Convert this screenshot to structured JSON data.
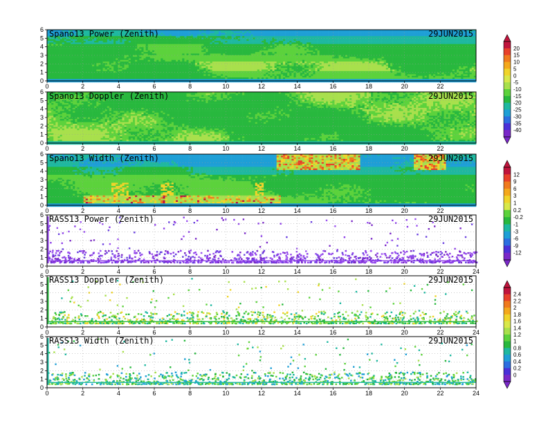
{
  "chart_data": [
    {
      "type": "heatmap",
      "title": "Spano13 Power (Zenith)",
      "date": "29JUN2015",
      "quantity": "power",
      "xlim": [
        0,
        24
      ],
      "ylim": [
        0,
        6
      ],
      "xticks": [
        "0",
        "2",
        "4",
        "6",
        "8",
        "10",
        "12",
        "14",
        "16",
        "18",
        "20",
        "22"
      ],
      "yticks": [
        "0",
        "1",
        "2",
        "3",
        "4",
        "5",
        "6"
      ],
      "grid": true,
      "colorbar": "power"
    },
    {
      "type": "heatmap",
      "title": "Spano13 Doppler (Zenith)",
      "date": "29JUN2015",
      "quantity": "doppler",
      "xlim": [
        0,
        24
      ],
      "ylim": [
        0,
        6
      ],
      "xticks": [
        "0",
        "2",
        "4",
        "6",
        "8",
        "10",
        "12",
        "14",
        "16",
        "18",
        "20",
        "22"
      ],
      "yticks": [
        "0",
        "1",
        "2",
        "3",
        "4",
        "5",
        "6"
      ],
      "grid": true,
      "colorbar": "power"
    },
    {
      "type": "heatmap",
      "title": "Spano13 Width (Zenith)",
      "date": "29JUN2015",
      "quantity": "width",
      "xlim": [
        0,
        24
      ],
      "ylim": [
        0,
        6
      ],
      "xticks": [
        "0",
        "2",
        "4",
        "6",
        "8",
        "10",
        "12",
        "14",
        "16",
        "18",
        "20",
        "22"
      ],
      "yticks": [
        "0",
        "1",
        "2",
        "3",
        "4",
        "5",
        "6"
      ],
      "grid": true,
      "colorbar": "width"
    },
    {
      "type": "scatter",
      "title": "RASS13 Power (Zenith)",
      "date": "29JUN2015",
      "quantity": "rass_power",
      "xlim": [
        0,
        24
      ],
      "ylim": [
        0,
        6
      ],
      "xticks": [
        "0",
        "2",
        "4",
        "6",
        "8",
        "10",
        "12",
        "14",
        "16",
        "18",
        "20",
        "22",
        "24"
      ],
      "yticks": [
        "0",
        "1",
        "2",
        "3",
        "4",
        "5",
        "6"
      ],
      "grid": true,
      "colorbar": "width"
    },
    {
      "type": "scatter",
      "title": "RASS13 Doppler (Zenith)",
      "date": "29JUN2015",
      "quantity": "rass_doppler",
      "xlim": [
        0,
        24
      ],
      "ylim": [
        0,
        6
      ],
      "xticks": [
        "0",
        "2",
        "4",
        "6",
        "8",
        "10",
        "12",
        "14",
        "16",
        "18",
        "20",
        "22",
        "24"
      ],
      "yticks": [
        "0",
        "1",
        "2",
        "3",
        "4",
        "5",
        "6"
      ],
      "grid": true,
      "colorbar": "rass"
    },
    {
      "type": "scatter",
      "title": "RASS13 Width (Zenith)",
      "date": "29JUN2015",
      "quantity": "rass_width",
      "xlim": [
        0,
        24
      ],
      "ylim": [
        0,
        6
      ],
      "xticks": [
        "0",
        "2",
        "4",
        "6",
        "8",
        "10",
        "12",
        "14",
        "16",
        "18",
        "20",
        "22",
        "24"
      ],
      "yticks": [
        "0",
        "1",
        "2",
        "3",
        "4",
        "5",
        "6"
      ],
      "grid": true,
      "colorbar": "rass"
    }
  ],
  "colorbars": {
    "power": {
      "labels": [
        "20",
        "15",
        "10",
        "5",
        "0",
        "-5",
        "-10",
        "-15",
        "-20",
        "-25",
        "-30",
        "-35",
        "-40"
      ],
      "colors": [
        "#c0143c",
        "#e8402a",
        "#f07a1e",
        "#f4a81c",
        "#f0d42a",
        "#d8e84a",
        "#a8e04c",
        "#5cd23c",
        "#28b83e",
        "#1eb8a0",
        "#1e9fd6",
        "#2c6ee0",
        "#4a30d8",
        "#7a28c8"
      ]
    },
    "width": {
      "labels": [
        "12",
        "9",
        "6",
        "3",
        "1",
        "0.2",
        "-0.2",
        "-1",
        "-3",
        "-6",
        "-9",
        "-12"
      ],
      "colors": [
        "#c0143c",
        "#e8402a",
        "#f07a1e",
        "#f4a81c",
        "#f0d42a",
        "#d8e84a",
        "#5cd23c",
        "#28b83e",
        "#1eb8a0",
        "#1e9fd6",
        "#2c6ee0",
        "#4a30d8",
        "#7a28c8"
      ]
    },
    "rass": {
      "labels": [
        "2.4",
        "2.2",
        "2",
        "1.8",
        "1.6",
        "1.4",
        "1.2",
        "1",
        "0.8",
        "0.6",
        "0.4",
        "0.2",
        "0"
      ],
      "colors": [
        "#c0143c",
        "#e8402a",
        "#f07a1e",
        "#f4a81c",
        "#f0d42a",
        "#d8e84a",
        "#a8e04c",
        "#5cd23c",
        "#28b83e",
        "#1eb8a0",
        "#1e9fd6",
        "#2c6ee0",
        "#4a30d8",
        "#7a28c8"
      ]
    }
  }
}
